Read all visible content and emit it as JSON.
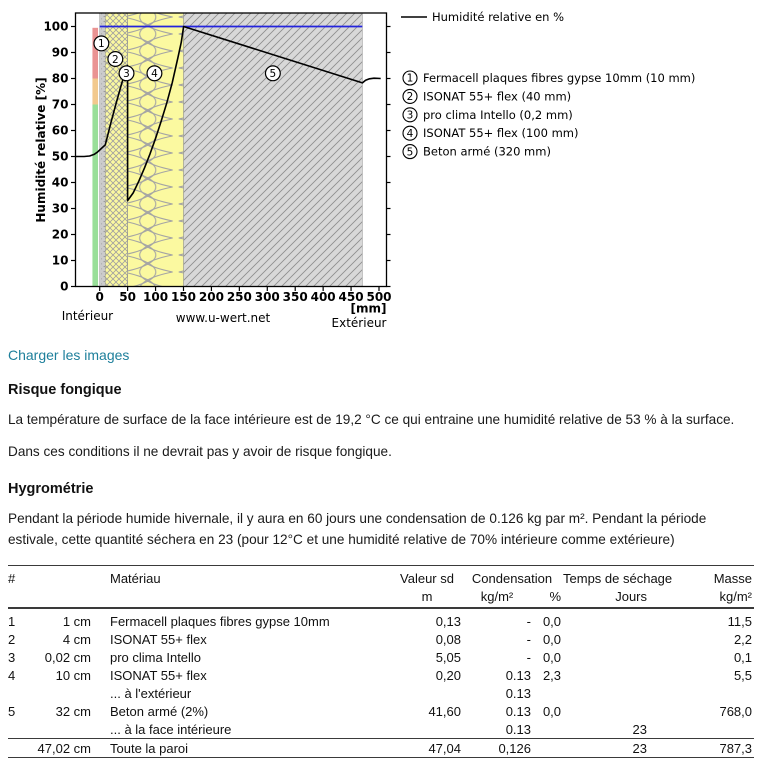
{
  "page": {
    "accent_color": "#1d7f9b",
    "load_link_label": "Charger les images"
  },
  "sections": {
    "risque": {
      "title": "Risque fongique",
      "p1": "La température de surface de la face intérieure est de 19,2 °C ce qui entraine une humidité relative de 53 % à la surface.",
      "p2": "Dans ces conditions il ne devrait pas y avoir de risque fongique."
    },
    "hygro": {
      "title": "Hygrométrie",
      "p1": "Pendant la période humide hivernale, il y aura en 60 jours une condensation de 0.126 kg par m². Pendant la période estivale, cette quantité séchera en 23 (pour 12°C et une humidité relative de 70% intérieure comme extérieure)"
    }
  },
  "chart_data": {
    "type": "line",
    "title": "",
    "ylabel": "Humidité relative [%]",
    "x_unit": "[mm]",
    "watermark": "www.u-wert.net",
    "bottom_labels": {
      "left": "Intérieur",
      "center": "www.u-wert.net",
      "right": "Extérieur"
    },
    "x_ticks": [
      0,
      50,
      100,
      150,
      200,
      250,
      300,
      350,
      400,
      450,
      500
    ],
    "y_ticks": [
      0,
      10,
      20,
      30,
      40,
      50,
      60,
      70,
      80,
      90,
      100
    ],
    "xlim_mm": [
      -43,
      513
    ],
    "ylim_pct": [
      0,
      105
    ],
    "grid": false,
    "legend_position": "top-right",
    "wall_to_mm": 470.2,
    "saturation_color": "#2424dd",
    "curve_color": "#000000",
    "series": [
      {
        "name": "Humidité relative en %",
        "points_mm_pct": [
          [
            -43,
            50
          ],
          [
            -28,
            50
          ],
          [
            -18,
            50.2
          ],
          [
            -10,
            50.8
          ],
          [
            -4,
            51.7
          ],
          [
            0,
            52.5
          ],
          [
            10,
            54.5
          ],
          [
            20,
            63
          ],
          [
            30,
            71
          ],
          [
            40,
            78.5
          ],
          [
            50,
            85
          ],
          [
            50,
            33
          ],
          [
            60,
            36
          ],
          [
            70,
            40.5
          ],
          [
            80,
            45.5
          ],
          [
            90,
            51
          ],
          [
            100,
            57
          ],
          [
            110,
            63.5
          ],
          [
            120,
            70.5
          ],
          [
            130,
            78.5
          ],
          [
            140,
            88
          ],
          [
            146,
            94
          ],
          [
            150.2,
            100
          ],
          [
            470.2,
            78.3
          ],
          [
            476,
            79.3
          ],
          [
            483,
            79.9
          ],
          [
            491,
            80.1
          ],
          [
            503,
            80
          ]
        ]
      }
    ],
    "humidity_scale": {
      "from_mm": -13,
      "to_mm": -3,
      "segments": [
        {
          "zone": "safe",
          "from_pct": 0,
          "to_pct": 70,
          "color": "#99df99"
        },
        {
          "zone": "warning",
          "from_pct": 70,
          "to_pct": 80,
          "color": "#f2c98e"
        },
        {
          "zone": "risk",
          "from_pct": 80,
          "to_pct": 99.5,
          "color": "#ea9393"
        }
      ]
    },
    "layers": [
      {
        "n": 1,
        "label": "Fermacell plaques fibres gypse 10mm (10 mm)",
        "from_mm": 0,
        "to_mm": 10,
        "pattern": "speckle",
        "color": "#cbcbcb",
        "marker_mm": 3,
        "marker_pct": 93.5
      },
      {
        "n": 2,
        "label": "ISONAT 55+ flex (40 mm)",
        "from_mm": 10,
        "to_mm": 50,
        "pattern": "mesh",
        "color": "#fbf9a0",
        "marker_mm": 28,
        "marker_pct": 87.5
      },
      {
        "n": 3,
        "label": "pro clima Intello (0,2 mm)",
        "from_mm": 50,
        "to_mm": 50.2,
        "pattern": "solid",
        "color": "#000000",
        "marker_mm": 48,
        "marker_pct": 82
      },
      {
        "n": 4,
        "label": "ISONAT 55+ flex (100 mm)",
        "from_mm": 50.2,
        "to_mm": 150.2,
        "pattern": "loops",
        "color": "#fbf9a0",
        "marker_mm": 98,
        "marker_pct": 82
      },
      {
        "n": 5,
        "label": "Beton armé (320 mm)",
        "from_mm": 150.2,
        "to_mm": 470.2,
        "pattern": "diag",
        "color": "#d8d8d8",
        "marker_mm": 310,
        "marker_pct": 82
      }
    ]
  },
  "table": {
    "header": {
      "num": "#",
      "material": "Matériau",
      "sd": "Valeur sd",
      "sd_unit": "m",
      "cond": "Condensation",
      "cond_unit": "kg/m²",
      "cond_pct_unit": "%",
      "drying": "Temps de séchage",
      "drying_unit": "Jours",
      "mass": "Masse",
      "mass_unit": "kg/m²"
    },
    "rows": [
      {
        "num": "1",
        "thickness": "1 cm",
        "material": "Fermacell plaques fibres gypse 10mm",
        "sd": "0,13",
        "cond_kg": "-",
        "cond_pct": "0,0",
        "drying": "",
        "mass": "11,5"
      },
      {
        "num": "2",
        "thickness": "4 cm",
        "material": "ISONAT 55+ flex",
        "sd": "0,08",
        "cond_kg": "-",
        "cond_pct": "0,0",
        "drying": "",
        "mass": "2,2"
      },
      {
        "num": "3",
        "thickness": "0,02 cm",
        "material": "pro clima Intello",
        "sd": "5,05",
        "cond_kg": "-",
        "cond_pct": "0,0",
        "drying": "",
        "mass": "0,1"
      },
      {
        "num": "4",
        "thickness": "10 cm",
        "material": "ISONAT 55+ flex",
        "sd": "0,20",
        "cond_kg": "0.13",
        "cond_pct": "2,3",
        "drying": "",
        "mass": "5,5"
      },
      {
        "num": "",
        "thickness": "",
        "material": "... à l'extérieur",
        "sd": "",
        "cond_kg": "0.13",
        "cond_pct": "",
        "drying": "",
        "mass": ""
      },
      {
        "num": "5",
        "thickness": "32 cm",
        "material": "Beton armé (2%)",
        "sd": "41,60",
        "cond_kg": "0.13",
        "cond_pct": "0,0",
        "drying": "",
        "mass": "768,0"
      },
      {
        "num": "",
        "thickness": "",
        "material": "... à la face intérieure",
        "sd": "",
        "cond_kg": "0.13",
        "cond_pct": "",
        "drying": "23",
        "mass": ""
      }
    ],
    "total": {
      "num": "",
      "thickness": "47,02 cm",
      "material": "Toute la paroi",
      "sd": "47,04",
      "cond_kg": "0,126",
      "cond_pct": "",
      "drying": "23",
      "mass": "787,3"
    }
  }
}
